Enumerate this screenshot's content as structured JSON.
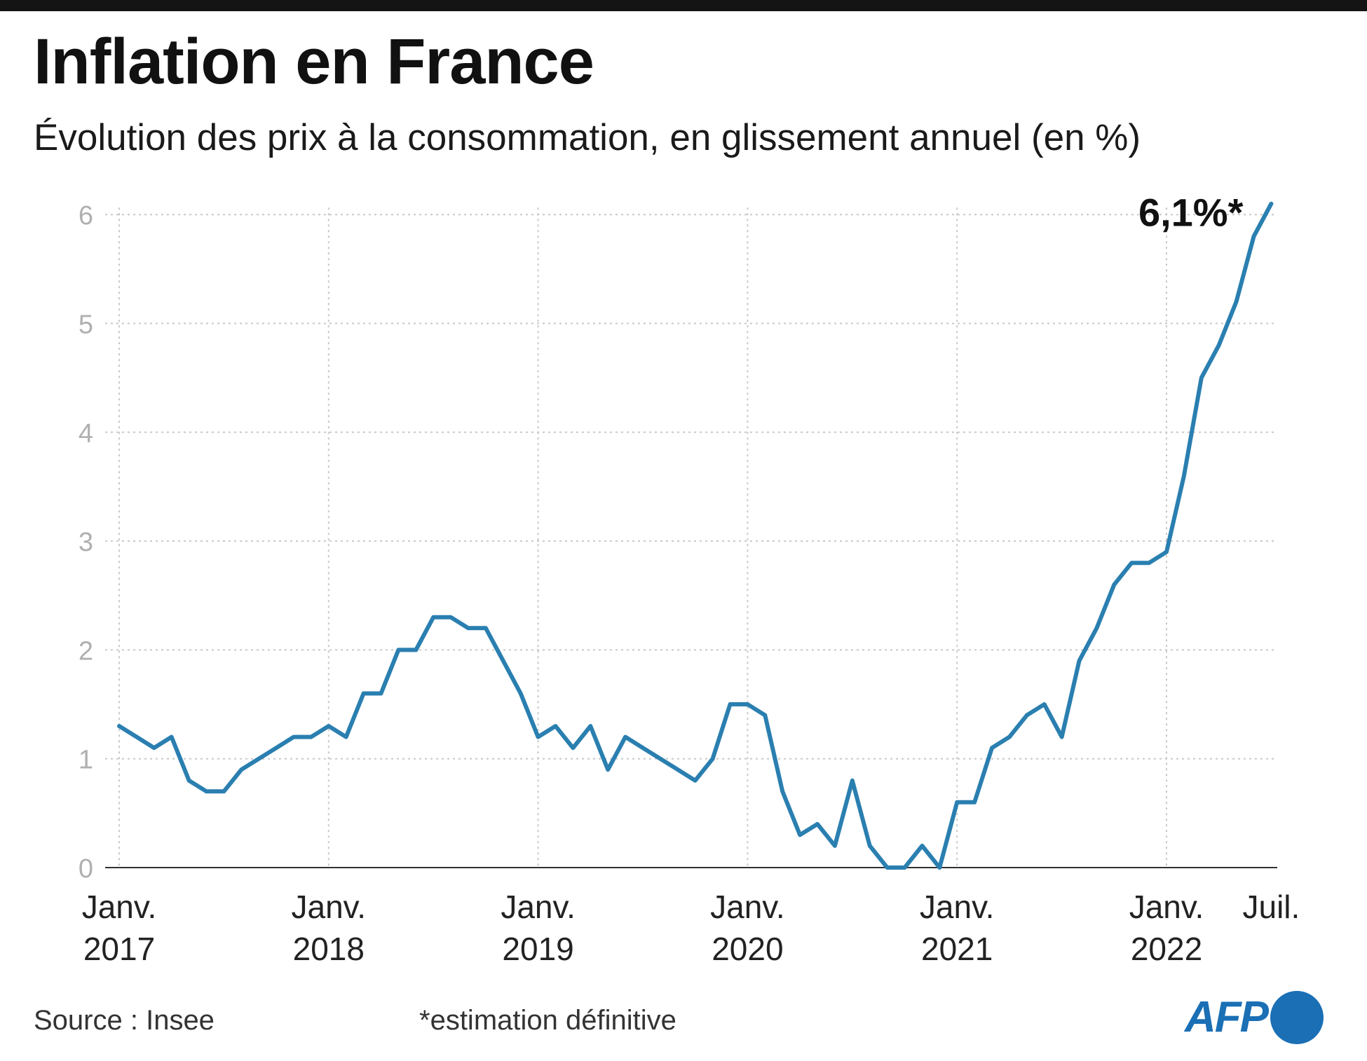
{
  "title": "Inflation en France",
  "subtitle": "Évolution des prix à la consommation, en glissement annuel (en %)",
  "source": "Source : Insee",
  "note": "*estimation définitive",
  "logo": "AFP",
  "colors": {
    "line": "#2a7fb0",
    "grid": "#c8c8c8",
    "axis_text": "#b0b0b0",
    "logo": "#1a6fb5"
  },
  "chart_data": {
    "type": "line",
    "title": "Inflation en France",
    "subtitle": "Évolution des prix à la consommation, en glissement annuel (en %)",
    "ylabel": "",
    "xlabel": "",
    "ylim": [
      0,
      6
    ],
    "yticks": [
      0,
      1,
      2,
      3,
      4,
      5,
      6
    ],
    "grid": true,
    "x_ticks": [
      {
        "month_index": 0,
        "line1": "Janv.",
        "line2": "2017"
      },
      {
        "month_index": 12,
        "line1": "Janv.",
        "line2": "2018"
      },
      {
        "month_index": 24,
        "line1": "Janv.",
        "line2": "2019"
      },
      {
        "month_index": 36,
        "line1": "Janv.",
        "line2": "2020"
      },
      {
        "month_index": 48,
        "line1": "Janv.",
        "line2": "2021"
      },
      {
        "month_index": 60,
        "line1": "Janv.",
        "line2": "2022"
      },
      {
        "month_index": 66,
        "line1": "Juil.",
        "line2": ""
      }
    ],
    "annotation": {
      "text": "6,1%*",
      "month_index": 66,
      "value": 6.1
    },
    "series": [
      {
        "values": [
          1.3,
          1.2,
          1.1,
          1.2,
          0.8,
          0.7,
          0.7,
          0.9,
          1.0,
          1.1,
          1.2,
          1.2,
          1.3,
          1.2,
          1.6,
          1.6,
          2.0,
          2.0,
          2.3,
          2.3,
          2.2,
          2.2,
          1.9,
          1.6,
          1.2,
          1.3,
          1.1,
          1.3,
          0.9,
          1.2,
          1.1,
          1.0,
          0.9,
          0.8,
          1.0,
          1.5,
          1.5,
          1.4,
          0.7,
          0.3,
          0.4,
          0.2,
          0.8,
          0.2,
          0.0,
          0.0,
          0.2,
          0.0,
          0.6,
          0.6,
          1.1,
          1.2,
          1.4,
          1.5,
          1.2,
          1.9,
          2.2,
          2.6,
          2.8,
          2.8,
          2.9,
          3.6,
          4.5,
          4.8,
          5.2,
          5.8,
          6.1
        ]
      }
    ]
  }
}
